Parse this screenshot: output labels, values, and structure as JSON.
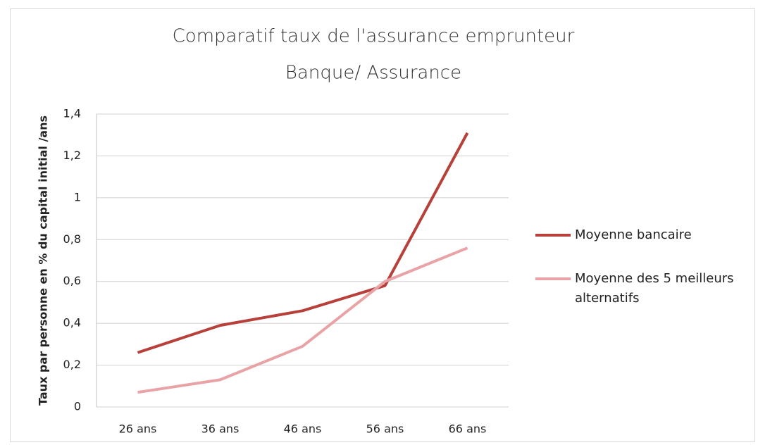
{
  "chart_data": {
    "type": "line",
    "title": "Comparatif taux de l'assurance emprunteur",
    "subtitle": "Banque/ Assurance",
    "y_label": "Taux par personne en % du capital initial /ans",
    "categories": [
      "26 ans",
      "36 ans",
      "46 ans",
      "56 ans",
      "66 ans"
    ],
    "series": [
      {
        "name": "Moyenne bancaire",
        "color": "#b8403a",
        "values": [
          0.26,
          0.39,
          0.46,
          0.58,
          1.31
        ]
      },
      {
        "name": "Moyenne des 5 meilleurs alternatifs",
        "color": "#e9a3a6",
        "values": [
          0.07,
          0.13,
          0.29,
          0.6,
          0.76
        ]
      }
    ],
    "ylim": [
      0,
      1.4
    ],
    "yticks": [
      0,
      {
        "value": 0.2,
        "label": "0,2"
      },
      {
        "value": 0.4,
        "label": "0,4"
      },
      {
        "value": 0.6,
        "label": "0,6"
      },
      {
        "value": 0.8,
        "label": "0,8"
      },
      1,
      {
        "value": 1.2,
        "label": "1,2"
      },
      {
        "value": 1.4,
        "label": "1,4"
      }
    ],
    "grid": true,
    "legend": "right"
  }
}
